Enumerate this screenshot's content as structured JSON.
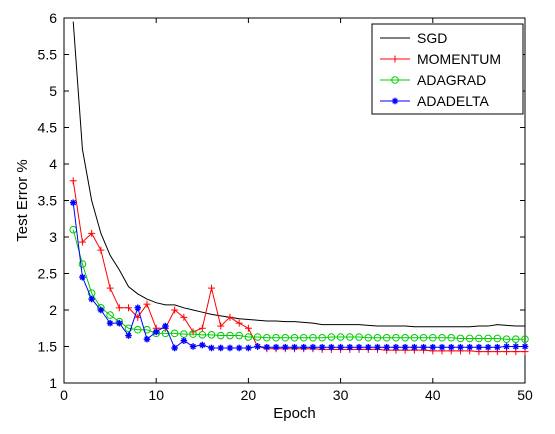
{
  "chart_data": {
    "type": "line",
    "title": "",
    "xlabel": "Epoch",
    "ylabel": "Test Error %",
    "xlim": [
      0,
      50
    ],
    "ylim": [
      1,
      6
    ],
    "xticks": [
      0,
      10,
      20,
      30,
      40,
      50
    ],
    "yticks": [
      1,
      1.5,
      2,
      2.5,
      3,
      3.5,
      4,
      4.5,
      5,
      5.5,
      6
    ],
    "ytick_labels": [
      "1",
      "1.5",
      "2",
      "2.5",
      "3",
      "3.5",
      "4",
      "4.5",
      "5",
      "5.5",
      "6"
    ],
    "grid": false,
    "legend_position": "top-right",
    "x": [
      1,
      2,
      3,
      4,
      5,
      6,
      7,
      8,
      9,
      10,
      11,
      12,
      13,
      14,
      15,
      16,
      17,
      18,
      19,
      20,
      21,
      22,
      23,
      24,
      25,
      26,
      27,
      28,
      29,
      30,
      31,
      32,
      33,
      34,
      35,
      36,
      37,
      38,
      39,
      40,
      41,
      42,
      43,
      44,
      45,
      46,
      47,
      48,
      49,
      50
    ],
    "series": [
      {
        "name": "SGD",
        "color": "#000000",
        "marker": "none",
        "values": [
          5.95,
          4.2,
          3.5,
          3.05,
          2.75,
          2.55,
          2.32,
          2.22,
          2.15,
          2.1,
          2.07,
          2.07,
          2.03,
          2.0,
          1.97,
          1.94,
          1.92,
          1.9,
          1.88,
          1.87,
          1.86,
          1.85,
          1.85,
          1.84,
          1.84,
          1.83,
          1.82,
          1.8,
          1.8,
          1.8,
          1.8,
          1.8,
          1.79,
          1.78,
          1.78,
          1.78,
          1.78,
          1.77,
          1.77,
          1.77,
          1.77,
          1.77,
          1.77,
          1.77,
          1.78,
          1.78,
          1.8,
          1.79,
          1.78,
          1.78
        ]
      },
      {
        "name": "MOMENTUM",
        "color": "#ff0000",
        "marker": "plus",
        "values": [
          3.77,
          2.93,
          3.05,
          2.82,
          2.3,
          2.03,
          2.03,
          1.9,
          2.08,
          1.75,
          1.75,
          2.0,
          1.9,
          1.7,
          1.75,
          2.3,
          1.78,
          1.9,
          1.82,
          1.75,
          1.5,
          1.47,
          1.47,
          1.47,
          1.47,
          1.47,
          1.47,
          1.46,
          1.46,
          1.46,
          1.46,
          1.46,
          1.46,
          1.46,
          1.45,
          1.45,
          1.45,
          1.45,
          1.45,
          1.44,
          1.44,
          1.44,
          1.44,
          1.44,
          1.43,
          1.43,
          1.43,
          1.43,
          1.43,
          1.43
        ]
      },
      {
        "name": "ADAGRAD",
        "color": "#00cc00",
        "marker": "circle",
        "values": [
          3.1,
          2.63,
          2.23,
          2.03,
          1.93,
          1.84,
          1.75,
          1.73,
          1.73,
          1.68,
          1.68,
          1.68,
          1.67,
          1.67,
          1.66,
          1.66,
          1.65,
          1.65,
          1.65,
          1.63,
          1.63,
          1.62,
          1.62,
          1.62,
          1.62,
          1.62,
          1.62,
          1.62,
          1.63,
          1.63,
          1.63,
          1.63,
          1.62,
          1.62,
          1.62,
          1.62,
          1.62,
          1.62,
          1.62,
          1.62,
          1.62,
          1.62,
          1.61,
          1.61,
          1.61,
          1.61,
          1.61,
          1.6,
          1.6,
          1.6
        ]
      },
      {
        "name": "ADADELTA",
        "color": "#0000ff",
        "marker": "star",
        "values": [
          3.47,
          2.45,
          2.15,
          2.0,
          1.82,
          1.82,
          1.65,
          2.03,
          1.6,
          1.7,
          1.78,
          1.48,
          1.58,
          1.5,
          1.52,
          1.48,
          1.48,
          1.48,
          1.48,
          1.48,
          1.5,
          1.49,
          1.49,
          1.49,
          1.49,
          1.49,
          1.49,
          1.49,
          1.49,
          1.49,
          1.49,
          1.49,
          1.49,
          1.49,
          1.49,
          1.49,
          1.49,
          1.49,
          1.49,
          1.49,
          1.49,
          1.49,
          1.49,
          1.49,
          1.49,
          1.49,
          1.49,
          1.5,
          1.5,
          1.5
        ]
      }
    ]
  }
}
